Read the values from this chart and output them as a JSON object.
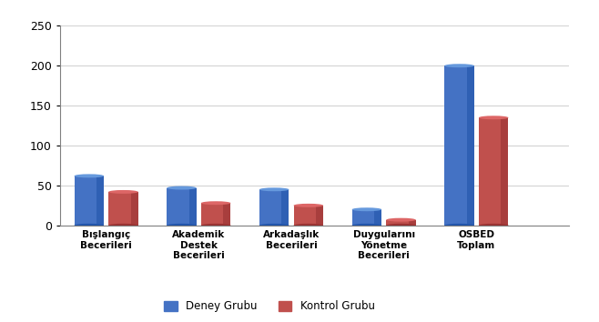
{
  "categories": [
    "Bışlangıç\nBecerileri",
    "Akademik\nDestek\nBecerileri",
    "Arkadaşlık\nBecerileri",
    "Duygularını\nYönetme\nBecerileri",
    "OSBED\nToplam"
  ],
  "deney": [
    62,
    47,
    45,
    20,
    200
  ],
  "kontrol": [
    42,
    28,
    25,
    7,
    135
  ],
  "deney_color_top": "#6699DD",
  "deney_color_body": "#4472C4",
  "deney_color_dark": "#2255AA",
  "kontrol_color_top": "#DD6666",
  "kontrol_color_body": "#C0504D",
  "kontrol_color_dark": "#993333",
  "ylim": [
    0,
    250
  ],
  "yticks": [
    0,
    50,
    100,
    150,
    200,
    250
  ],
  "legend_deney": "Deney Grubu",
  "legend_kontrol": "Kontrol Grubu",
  "background_color": "#FFFFFF",
  "chart_bg": "#FFFFFF"
}
